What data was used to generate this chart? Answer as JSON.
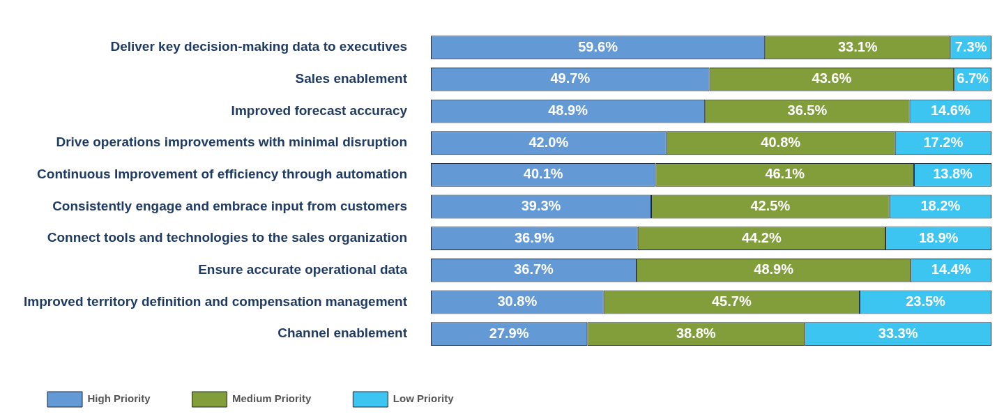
{
  "chart_data": {
    "type": "bar",
    "orientation": "horizontal",
    "stacked": true,
    "categories": [
      "Deliver key decision-making data to executives",
      "Sales enablement",
      "Improved forecast accuracy",
      "Drive operations improvements with minimal disruption",
      "Continuous Improvement of efficiency through automation",
      "Consistently engage and embrace input from customers",
      "Connect tools and technologies to the sales organization",
      "Ensure accurate operational data",
      "Improved territory definition and compensation management",
      "Channel enablement"
    ],
    "series": [
      {
        "name": "High Priority",
        "color": "#6399d4",
        "values": [
          59.6,
          49.7,
          48.9,
          42.0,
          40.1,
          39.3,
          36.9,
          36.7,
          30.8,
          27.9
        ],
        "value_labels": [
          "59.6%",
          "49.7%",
          "48.9%",
          "42.0%",
          "40.1%",
          "39.3%",
          "36.9%",
          "36.7%",
          "30.8%",
          "27.9%"
        ]
      },
      {
        "name": "Medium Priority",
        "color": "#819e3b",
        "values": [
          33.1,
          43.6,
          36.5,
          40.8,
          46.1,
          42.5,
          44.2,
          48.9,
          45.7,
          38.8
        ],
        "value_labels": [
          "33.1%",
          "43.6%",
          "36.5%",
          "40.8%",
          "46.1%",
          "42.5%",
          "44.2%",
          "48.9%",
          "45.7%",
          "38.8%"
        ]
      },
      {
        "name": "Low Priority",
        "color": "#3cc5f1",
        "values": [
          7.3,
          6.7,
          14.6,
          17.2,
          13.8,
          18.2,
          18.9,
          14.4,
          23.5,
          33.3
        ],
        "value_labels": [
          "7.3%",
          "6.7%",
          "14.6%",
          "17.2%",
          "13.8%",
          "18.2%",
          "18.9%",
          "14.4%",
          "23.5%",
          "33.3%"
        ]
      }
    ],
    "xlim": [
      0,
      100
    ],
    "tick_labels": "y",
    "legend": "bottom"
  }
}
